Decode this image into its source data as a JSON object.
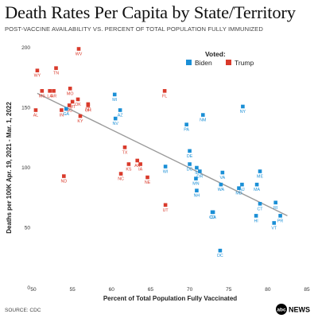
{
  "header": {
    "title": "Death Rates Per Capita by State/Territory",
    "subtitle": "POST-VACCINE AVAILABILITY VS. PERCENT OF TOTAL POPULATION FULLY IMMUNIZED"
  },
  "footer": {
    "source": "SOURCE: CDC",
    "logo_text": "NEWS"
  },
  "colors": {
    "biden": "#1a8fd6",
    "trump": "#d93a2b",
    "trend": "#9a9a9a",
    "logo": "#000000"
  },
  "chart_data": {
    "type": "scatter",
    "title": "Death Rates Per Capita by State/Territory",
    "subtitle": "POST-VACCINE AVAILABILITY VS. PERCENT OF TOTAL POPULATION FULLY IMMUNIZED",
    "xlabel": "Percent of Total Population Fully Vaccinated",
    "ylabel": "Deaths per 100K Apr. 19, 2021 - Mar. 1, 2022",
    "xlim": [
      50,
      85
    ],
    "ylim": [
      0,
      200
    ],
    "xticks": [
      50,
      55,
      60,
      65,
      70,
      75,
      80,
      85
    ],
    "yticks": [
      0,
      50,
      100,
      150,
      200
    ],
    "grid": false,
    "legend": {
      "title": "Voted:",
      "position": "top-right",
      "entries": [
        {
          "name": "Biden",
          "color": "#1a8fd6"
        },
        {
          "name": "Trump",
          "color": "#d93a2b"
        }
      ]
    },
    "trendline": {
      "from": [
        50.5,
        162
      ],
      "to": [
        82.5,
        60
      ]
    },
    "points": [
      {
        "label": "WY",
        "x": 50.5,
        "y": 181,
        "vote": "Trump"
      },
      {
        "label": "AL",
        "x": 50.3,
        "y": 148,
        "vote": "Trump"
      },
      {
        "label": "WV",
        "x": 55.8,
        "y": 199,
        "vote": "Trump"
      },
      {
        "label": "TN",
        "x": 52.9,
        "y": 183,
        "vote": "Trump"
      },
      {
        "label": "MS",
        "x": 51.1,
        "y": 164,
        "vote": "Trump"
      },
      {
        "label": "LA",
        "x": 52.1,
        "y": 164,
        "vote": "Trump"
      },
      {
        "label": "AR",
        "x": 52.6,
        "y": 164,
        "vote": "Trump"
      },
      {
        "label": "MO",
        "x": 54.7,
        "y": 166,
        "vote": "Trump"
      },
      {
        "label": "OK",
        "x": 55.7,
        "y": 157,
        "vote": "Trump"
      },
      {
        "label": "IN",
        "x": 53.6,
        "y": 148,
        "vote": "Trump"
      },
      {
        "label": "KY",
        "x": 56.0,
        "y": 143,
        "vote": "Trump"
      },
      {
        "label": "OH",
        "x": 57.0,
        "y": 152,
        "vote": "Trump"
      },
      {
        "label": "SC",
        "x": 54.6,
        "y": 152,
        "vote": "Trump"
      },
      {
        "label": "MT",
        "x": 55.0,
        "y": 155,
        "vote": "Trump"
      },
      {
        "label": "SD",
        "x": 57.0,
        "y": 153,
        "vote": "Trump"
      },
      {
        "label": "FL",
        "x": 66.8,
        "y": 164,
        "vote": "Trump"
      },
      {
        "label": "TX",
        "x": 61.7,
        "y": 117,
        "vote": "Trump"
      },
      {
        "label": "AK",
        "x": 63.3,
        "y": 106,
        "vote": "Trump"
      },
      {
        "label": "IA",
        "x": 63.7,
        "y": 103,
        "vote": "Trump"
      },
      {
        "label": "KS",
        "x": 62.2,
        "y": 103,
        "vote": "Trump"
      },
      {
        "label": "NC",
        "x": 61.2,
        "y": 95,
        "vote": "Trump"
      },
      {
        "label": "NE",
        "x": 64.6,
        "y": 92,
        "vote": "Trump"
      },
      {
        "label": "ND",
        "x": 53.9,
        "y": 93,
        "vote": "Trump"
      },
      {
        "label": "UT",
        "x": 66.9,
        "y": 69,
        "vote": "Trump"
      },
      {
        "label": "GA",
        "x": 54.2,
        "y": 149,
        "vote": "Biden"
      },
      {
        "label": "MI",
        "x": 60.4,
        "y": 161,
        "vote": "Biden"
      },
      {
        "label": "AZ",
        "x": 61.1,
        "y": 148,
        "vote": "Biden"
      },
      {
        "label": "NV",
        "x": 60.5,
        "y": 141,
        "vote": "Biden"
      },
      {
        "label": "PA",
        "x": 69.6,
        "y": 136,
        "vote": "Biden"
      },
      {
        "label": "NM",
        "x": 71.7,
        "y": 144,
        "vote": "Biden"
      },
      {
        "label": "NY",
        "x": 76.8,
        "y": 151,
        "vote": "Biden"
      },
      {
        "label": "WI",
        "x": 66.9,
        "y": 101,
        "vote": "Biden"
      },
      {
        "label": "DE",
        "x": 70.0,
        "y": 114,
        "vote": "Biden"
      },
      {
        "label": "DC",
        "x": 70.0,
        "y": 103,
        "vote": "Biden"
      },
      {
        "label": "IL",
        "x": 70.9,
        "y": 100,
        "vote": "Biden"
      },
      {
        "label": "OR",
        "x": 71.3,
        "y": 97,
        "vote": "Biden"
      },
      {
        "label": "VA",
        "x": 74.2,
        "y": 96,
        "vote": "Biden"
      },
      {
        "label": "MN",
        "x": 70.8,
        "y": 91,
        "vote": "Biden"
      },
      {
        "label": "NH",
        "x": 70.9,
        "y": 81,
        "vote": "Biden"
      },
      {
        "label": "WA",
        "x": 74.0,
        "y": 86,
        "vote": "Biden"
      },
      {
        "label": "NJ",
        "x": 76.7,
        "y": 86,
        "vote": "Biden"
      },
      {
        "label": "MD",
        "x": 76.3,
        "y": 83,
        "vote": "Biden"
      },
      {
        "label": "ME",
        "x": 79.0,
        "y": 97,
        "vote": "Biden"
      },
      {
        "label": "MA",
        "x": 78.6,
        "y": 86,
        "vote": "Biden"
      },
      {
        "label": "CT",
        "x": 79.0,
        "y": 70,
        "vote": "Biden"
      },
      {
        "label": "RI",
        "x": 81.0,
        "y": 71,
        "vote": "Biden"
      },
      {
        "label": "CA",
        "x": 73.0,
        "y": 63,
        "vote": "Biden"
      },
      {
        "label": "HI",
        "x": 78.5,
        "y": 60,
        "vote": "Biden"
      },
      {
        "label": "VT",
        "x": 80.8,
        "y": 54,
        "vote": "Biden"
      },
      {
        "label": "PR",
        "x": 81.6,
        "y": 60,
        "vote": "Biden"
      },
      {
        "label": "CO",
        "x": 72.9,
        "y": 63,
        "vote": "Biden"
      },
      {
        "label": "DC2",
        "x": 73.9,
        "y": 31,
        "vote": "Biden"
      }
    ]
  }
}
